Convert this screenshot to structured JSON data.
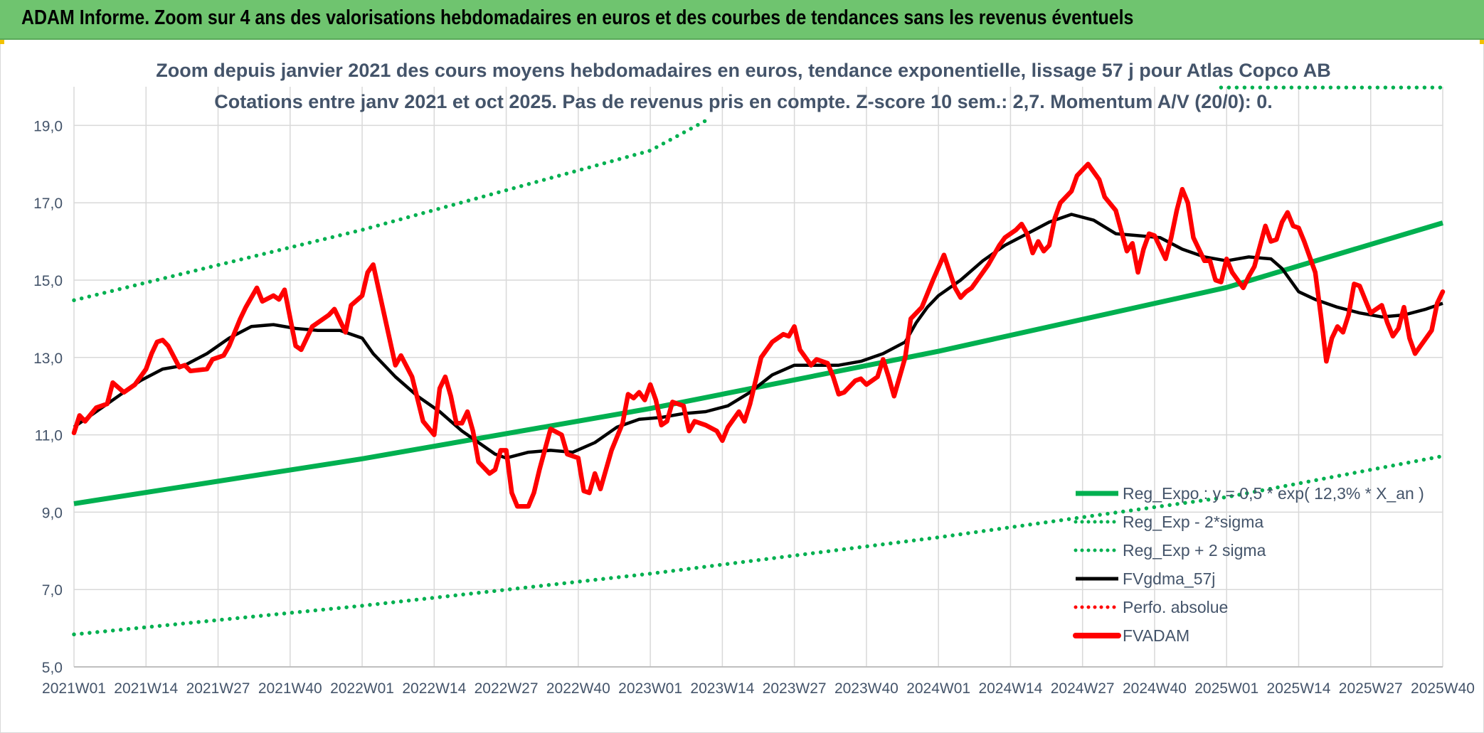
{
  "header": {
    "title": "ADAM Informe. Zoom sur 4 ans des valorisations hebdomadaires en euros et des courbes de tendances sans les revenus éventuels"
  },
  "colors": {
    "banner": "#6fc46f",
    "trend": "#00b050",
    "price": "#ff0000",
    "smooth": "#000000",
    "perf": "#ff0000",
    "grid": "#d9d9d9",
    "text": "#44546a"
  },
  "chart_data": {
    "type": "line",
    "title": "Zoom depuis janvier 2021 des cours moyens hebdomadaires en euros, tendance exponentielle, lissage 57 j pour Atlas Copco AB",
    "subtitle": "Cotations entre janv 2021 et oct 2025. Pas de revenus pris en compte. Z-score 10 sem.: 2,7. Momentum A/V (20/0): 0.",
    "xlabel": "",
    "ylabel": "",
    "ylim": [
      5.0,
      20.0
    ],
    "yticks": [
      "5,0",
      "7,0",
      "9,0",
      "11,0",
      "13,0",
      "15,0",
      "17,0",
      "19,0"
    ],
    "ytick_values": [
      5,
      7,
      9,
      11,
      13,
      15,
      17,
      19
    ],
    "xlim": [
      0,
      247
    ],
    "x_categories": [
      "2021W01",
      "2021W14",
      "2021W27",
      "2021W40",
      "2022W01",
      "2022W14",
      "2022W27",
      "2022W40",
      "2023W01",
      "2023W14",
      "2023W27",
      "2023W40",
      "2024W01",
      "2024W14",
      "2024W27",
      "2024W40",
      "2025W01",
      "2025W14",
      "2025W27",
      "2025W40"
    ],
    "x_category_weeks": [
      0,
      13,
      26,
      39,
      52,
      65,
      78,
      91,
      104,
      117,
      130,
      143,
      156,
      169,
      182,
      195,
      208,
      221,
      234,
      247
    ],
    "grid": true,
    "legend_position": "bottom-right",
    "legend": [
      {
        "label": "Reg_Expo : y = 0,5 * exp( 12,3% *  X_an )",
        "style": "solid",
        "color": "#00b050",
        "series": "reg_expo"
      },
      {
        "label": "Reg_Exp - 2*sigma",
        "style": "dotted",
        "color": "#00b050",
        "series": "reg_minus"
      },
      {
        "label": "Reg_Exp + 2 sigma",
        "style": "dotted",
        "color": "#00b050",
        "series": "reg_plus"
      },
      {
        "label": "FVgdma_57j",
        "style": "solid",
        "color": "#000000",
        "series": "fvgdma"
      },
      {
        "label": "Perfo. absolue",
        "style": "dotted",
        "color": "#ff0000",
        "series": "perfo"
      },
      {
        "label": "FVADAM",
        "style": "solid-thick",
        "color": "#ff0000",
        "series": "fvadam"
      }
    ],
    "series": [
      {
        "name": "Reg_Expo",
        "key": "reg_expo",
        "style": "solid",
        "color": "#00b050",
        "points": [
          [
            0,
            9.22
          ],
          [
            52,
            10.38
          ],
          [
            104,
            11.68
          ],
          [
            156,
            13.16
          ],
          [
            208,
            14.81
          ],
          [
            247,
            16.48
          ]
        ]
      },
      {
        "name": "Reg_Exp - 2*sigma",
        "key": "reg_minus",
        "style": "dotted",
        "color": "#00b050",
        "points": [
          [
            0,
            5.84
          ],
          [
            52,
            6.58
          ],
          [
            104,
            7.41
          ],
          [
            156,
            8.35
          ],
          [
            208,
            9.39
          ],
          [
            247,
            10.45
          ]
        ]
      },
      {
        "name": "Reg_Exp + 2 sigma",
        "key": "reg_plus",
        "style": "dotted",
        "color": "#00b050",
        "points": [
          [
            0,
            14.48
          ],
          [
            52,
            16.3
          ],
          [
            104,
            18.35
          ],
          [
            115,
            19.2
          ]
        ],
        "extra_points": [
          [
            207,
            19.98
          ],
          [
            247,
            19.98
          ]
        ]
      },
      {
        "name": "FVgdma_57j",
        "key": "fvgdma",
        "style": "solid",
        "color": "#000000",
        "points": [
          [
            0,
            11.2
          ],
          [
            4,
            11.6
          ],
          [
            8,
            12.0
          ],
          [
            12,
            12.4
          ],
          [
            16,
            12.7
          ],
          [
            20,
            12.8
          ],
          [
            24,
            13.1
          ],
          [
            28,
            13.5
          ],
          [
            32,
            13.8
          ],
          [
            36,
            13.85
          ],
          [
            40,
            13.75
          ],
          [
            44,
            13.7
          ],
          [
            48,
            13.7
          ],
          [
            52,
            13.5
          ],
          [
            54,
            13.1
          ],
          [
            58,
            12.5
          ],
          [
            62,
            12.0
          ],
          [
            66,
            11.6
          ],
          [
            70,
            11.1
          ],
          [
            74,
            10.7
          ],
          [
            76,
            10.5
          ],
          [
            78,
            10.4
          ],
          [
            82,
            10.55
          ],
          [
            86,
            10.6
          ],
          [
            90,
            10.55
          ],
          [
            94,
            10.8
          ],
          [
            98,
            11.2
          ],
          [
            102,
            11.4
          ],
          [
            106,
            11.45
          ],
          [
            110,
            11.55
          ],
          [
            114,
            11.6
          ],
          [
            118,
            11.75
          ],
          [
            122,
            12.1
          ],
          [
            126,
            12.55
          ],
          [
            130,
            12.8
          ],
          [
            134,
            12.8
          ],
          [
            138,
            12.8
          ],
          [
            142,
            12.9
          ],
          [
            146,
            13.1
          ],
          [
            150,
            13.4
          ],
          [
            152,
            13.9
          ],
          [
            154,
            14.3
          ],
          [
            156,
            14.6
          ],
          [
            160,
            15.0
          ],
          [
            164,
            15.5
          ],
          [
            168,
            15.9
          ],
          [
            172,
            16.2
          ],
          [
            176,
            16.5
          ],
          [
            180,
            16.7
          ],
          [
            184,
            16.55
          ],
          [
            188,
            16.2
          ],
          [
            192,
            16.15
          ],
          [
            196,
            16.1
          ],
          [
            200,
            15.8
          ],
          [
            204,
            15.6
          ],
          [
            208,
            15.5
          ],
          [
            212,
            15.6
          ],
          [
            216,
            15.55
          ],
          [
            218,
            15.3
          ],
          [
            221,
            14.7
          ],
          [
            224,
            14.5
          ],
          [
            228,
            14.3
          ],
          [
            232,
            14.15
          ],
          [
            236,
            14.05
          ],
          [
            240,
            14.1
          ],
          [
            244,
            14.25
          ],
          [
            247,
            14.4
          ]
        ]
      },
      {
        "name": "FVADAM",
        "key": "fvadam",
        "style": "solid-thick",
        "color": "#ff0000",
        "points": [
          [
            0,
            11.05
          ],
          [
            1,
            11.5
          ],
          [
            2,
            11.35
          ],
          [
            4,
            11.7
          ],
          [
            6,
            11.8
          ],
          [
            7,
            12.35
          ],
          [
            9,
            12.1
          ],
          [
            11,
            12.3
          ],
          [
            13,
            12.7
          ],
          [
            14,
            13.1
          ],
          [
            15,
            13.4
          ],
          [
            16,
            13.45
          ],
          [
            17,
            13.3
          ],
          [
            19,
            12.75
          ],
          [
            20,
            12.8
          ],
          [
            21,
            12.65
          ],
          [
            24,
            12.7
          ],
          [
            25,
            12.95
          ],
          [
            27,
            13.05
          ],
          [
            28,
            13.3
          ],
          [
            30,
            14.0
          ],
          [
            31,
            14.3
          ],
          [
            33,
            14.8
          ],
          [
            34,
            14.45
          ],
          [
            36,
            14.6
          ],
          [
            37,
            14.5
          ],
          [
            38,
            14.75
          ],
          [
            40,
            13.3
          ],
          [
            41,
            13.2
          ],
          [
            43,
            13.8
          ],
          [
            46,
            14.1
          ],
          [
            47,
            14.25
          ],
          [
            49,
            13.65
          ],
          [
            50,
            14.35
          ],
          [
            52,
            14.6
          ],
          [
            53,
            15.2
          ],
          [
            54,
            15.4
          ],
          [
            56,
            14.1
          ],
          [
            58,
            12.8
          ],
          [
            59,
            13.05
          ],
          [
            61,
            12.5
          ],
          [
            63,
            11.35
          ],
          [
            65,
            11.0
          ],
          [
            66,
            12.2
          ],
          [
            67,
            12.5
          ],
          [
            68,
            12.0
          ],
          [
            69,
            11.3
          ],
          [
            70,
            11.3
          ],
          [
            71,
            11.6
          ],
          [
            72,
            11.1
          ],
          [
            73,
            10.3
          ],
          [
            75,
            10.0
          ],
          [
            76,
            10.1
          ],
          [
            77,
            10.6
          ],
          [
            78,
            10.6
          ],
          [
            79,
            9.5
          ],
          [
            80,
            9.15
          ],
          [
            82,
            9.15
          ],
          [
            83,
            9.5
          ],
          [
            84,
            10.1
          ],
          [
            86,
            11.15
          ],
          [
            88,
            11.0
          ],
          [
            89,
            10.5
          ],
          [
            91,
            10.4
          ],
          [
            92,
            9.55
          ],
          [
            93,
            9.5
          ],
          [
            94,
            10.0
          ],
          [
            95,
            9.6
          ],
          [
            97,
            10.6
          ],
          [
            99,
            11.3
          ],
          [
            100,
            12.05
          ],
          [
            101,
            11.95
          ],
          [
            102,
            12.1
          ],
          [
            103,
            11.9
          ],
          [
            104,
            12.3
          ],
          [
            105,
            11.9
          ],
          [
            106,
            11.25
          ],
          [
            107,
            11.35
          ],
          [
            108,
            11.85
          ],
          [
            110,
            11.75
          ],
          [
            111,
            11.1
          ],
          [
            112,
            11.35
          ],
          [
            114,
            11.25
          ],
          [
            116,
            11.1
          ],
          [
            117,
            10.85
          ],
          [
            118,
            11.2
          ],
          [
            120,
            11.6
          ],
          [
            121,
            11.35
          ],
          [
            122,
            11.8
          ],
          [
            124,
            13.0
          ],
          [
            126,
            13.4
          ],
          [
            128,
            13.6
          ],
          [
            129,
            13.55
          ],
          [
            130,
            13.8
          ],
          [
            131,
            13.2
          ],
          [
            132,
            13.0
          ],
          [
            133,
            12.8
          ],
          [
            134,
            12.95
          ],
          [
            136,
            12.85
          ],
          [
            137,
            12.5
          ],
          [
            138,
            12.05
          ],
          [
            139,
            12.1
          ],
          [
            141,
            12.4
          ],
          [
            142,
            12.45
          ],
          [
            143,
            12.3
          ],
          [
            145,
            12.5
          ],
          [
            146,
            12.95
          ],
          [
            147,
            12.5
          ],
          [
            148,
            12.0
          ],
          [
            150,
            13.0
          ],
          [
            151,
            14.0
          ],
          [
            153,
            14.3
          ],
          [
            155,
            15.0
          ],
          [
            157,
            15.65
          ],
          [
            159,
            14.8
          ],
          [
            160,
            14.55
          ],
          [
            161,
            14.7
          ],
          [
            162,
            14.8
          ],
          [
            163,
            15.0
          ],
          [
            165,
            15.4
          ],
          [
            167,
            15.9
          ],
          [
            168,
            16.1
          ],
          [
            170,
            16.3
          ],
          [
            171,
            16.45
          ],
          [
            172,
            16.2
          ],
          [
            173,
            15.7
          ],
          [
            174,
            16.0
          ],
          [
            175,
            15.75
          ],
          [
            176,
            15.9
          ],
          [
            177,
            16.6
          ],
          [
            178,
            17.0
          ],
          [
            180,
            17.3
          ],
          [
            181,
            17.7
          ],
          [
            183,
            18.0
          ],
          [
            185,
            17.6
          ],
          [
            186,
            17.15
          ],
          [
            188,
            16.8
          ],
          [
            190,
            15.75
          ],
          [
            191,
            15.95
          ],
          [
            192,
            15.2
          ],
          [
            193,
            15.8
          ],
          [
            194,
            16.2
          ],
          [
            195,
            16.15
          ],
          [
            197,
            15.55
          ],
          [
            198,
            16.1
          ],
          [
            199,
            16.8
          ],
          [
            200,
            17.35
          ],
          [
            201,
            17.0
          ],
          [
            202,
            16.1
          ],
          [
            204,
            15.5
          ],
          [
            205,
            15.5
          ],
          [
            206,
            15.0
          ],
          [
            207,
            14.95
          ],
          [
            208,
            15.55
          ],
          [
            209,
            15.2
          ],
          [
            211,
            14.8
          ],
          [
            212,
            15.1
          ],
          [
            213,
            15.35
          ],
          [
            215,
            16.4
          ],
          [
            216,
            16.0
          ],
          [
            217,
            16.05
          ],
          [
            218,
            16.5
          ],
          [
            219,
            16.75
          ],
          [
            220,
            16.4
          ],
          [
            221,
            16.35
          ],
          [
            222,
            16.0
          ],
          [
            224,
            15.2
          ],
          [
            225,
            14.1
          ],
          [
            226,
            12.9
          ],
          [
            227,
            13.5
          ],
          [
            228,
            13.8
          ],
          [
            229,
            13.65
          ],
          [
            230,
            14.1
          ],
          [
            231,
            14.9
          ],
          [
            232,
            14.85
          ],
          [
            233,
            14.5
          ],
          [
            234,
            14.15
          ],
          [
            236,
            14.35
          ],
          [
            237,
            13.9
          ],
          [
            238,
            13.55
          ],
          [
            239,
            13.75
          ],
          [
            240,
            14.3
          ],
          [
            241,
            13.5
          ],
          [
            242,
            13.1
          ],
          [
            243,
            13.3
          ],
          [
            244,
            13.5
          ],
          [
            245,
            13.7
          ],
          [
            246,
            14.4
          ],
          [
            247,
            14.7
          ]
        ]
      }
    ]
  }
}
